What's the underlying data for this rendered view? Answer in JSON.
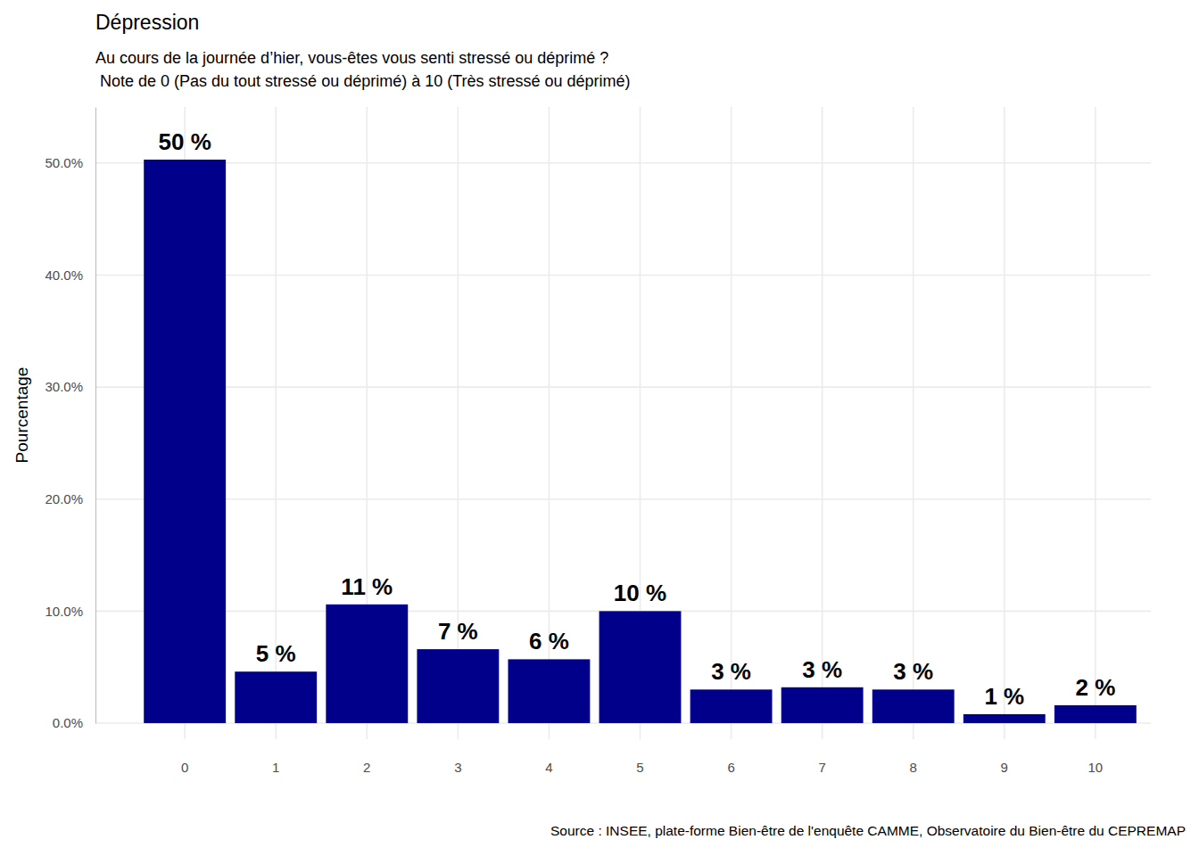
{
  "chart_data": {
    "type": "bar",
    "title": "Dépression",
    "subtitle": [
      "Au cours de la journée d’hier, vous-êtes vous senti stressé ou déprimé ?",
      " Note de 0 (Pas du tout stressé ou déprimé) à 10 (Très stressé ou déprimé)"
    ],
    "y_label": "Pourcentage",
    "source": "Source : INSEE, plate-forme Bien-être de l'enquête CAMME, Observatoire du Bien-être du CEPREMAP",
    "categories": [
      "0",
      "1",
      "2",
      "3",
      "4",
      "5",
      "6",
      "7",
      "8",
      "9",
      "10"
    ],
    "values": [
      50.3,
      4.6,
      10.6,
      6.6,
      5.7,
      10.0,
      3.0,
      3.2,
      3.0,
      0.8,
      1.6
    ],
    "value_labels": [
      "50 %",
      "5 %",
      "11 %",
      "7 %",
      "6 %",
      "10 %",
      "3 %",
      "3 %",
      "3 %",
      "1 %",
      "2 %"
    ],
    "data_labels": true,
    "color": "#00008b",
    "ylim": [
      0,
      55
    ],
    "yticks": [
      {
        "value": 0,
        "label": "0.0%"
      },
      {
        "value": 10,
        "label": "10.0%"
      },
      {
        "value": 20,
        "label": "20.0%"
      },
      {
        "value": 30,
        "label": "30.0%"
      },
      {
        "value": 40,
        "label": "40.0%"
      },
      {
        "value": 50,
        "label": "50.0%"
      }
    ],
    "grid": true
  }
}
